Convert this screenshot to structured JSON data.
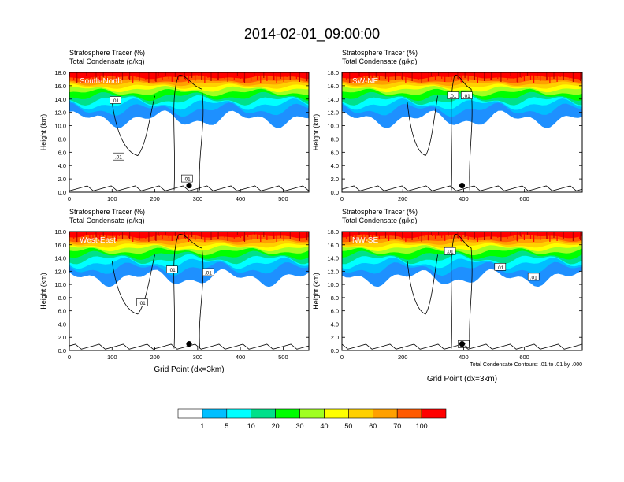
{
  "title": "2014-02-01_09:00:00",
  "panels": [
    {
      "label": "South-North",
      "header_line1": "Stratosphere Tracer   (%)",
      "header_line2": "Total Condensate   (g/kg)",
      "ylabel": "Height (km)",
      "xlabel": "",
      "xticks": [
        "0",
        "100",
        "200",
        "300",
        "400",
        "500"
      ],
      "xmax": 560,
      "marker_x": 280,
      "contour_labels": [
        {
          "text": ".01",
          "x": 108,
          "y": 13.8
        },
        {
          "text": ".01",
          "x": 115,
          "y": 5.3
        },
        {
          "text": ".01",
          "x": 275,
          "y": 2.0
        }
      ]
    },
    {
      "label": "SW-NE",
      "header_line1": "Stratosphere Tracer   (%)",
      "header_line2": "Total Condensate   (g/kg)",
      "ylabel": "Height (km)",
      "xlabel": "",
      "xticks": [
        "0",
        "200",
        "400",
        "600"
      ],
      "xmax": 790,
      "marker_x": 395,
      "contour_labels": [
        {
          "text": ".01",
          "x": 365,
          "y": 14.5
        },
        {
          "text": ".01",
          "x": 410,
          "y": 14.5
        }
      ]
    },
    {
      "label": "West-East",
      "header_line1": "Stratosphere Tracer   (%)",
      "header_line2": "Total Condensate   (g/kg)",
      "ylabel": "Height (km)",
      "xlabel": "Grid Point (dx=3km)",
      "xticks": [
        "0",
        "100",
        "200",
        "300",
        "400",
        "500"
      ],
      "xmax": 560,
      "marker_x": 280,
      "contour_labels": [
        {
          "text": ".01",
          "x": 240,
          "y": 12.2
        },
        {
          "text": ".01",
          "x": 170,
          "y": 7.2
        },
        {
          "text": ".01",
          "x": 325,
          "y": 11.8
        }
      ]
    },
    {
      "label": "NW-SE",
      "header_line1": "Stratosphere Tracer   (%)",
      "header_line2": "Total Condensate   (g/kg)",
      "ylabel": "Height (km)",
      "xlabel": "Grid Point (dx=3km)",
      "xticks": [
        "0",
        "200",
        "400",
        "600"
      ],
      "xmax": 790,
      "marker_x": 395,
      "contour_labels": [
        {
          "text": ".01",
          "x": 355,
          "y": 15.0
        },
        {
          "text": ".01",
          "x": 400,
          "y": 0.9
        },
        {
          "text": ".01",
          "x": 520,
          "y": 12.6
        },
        {
          "text": ".01",
          "x": 630,
          "y": 11.1
        }
      ]
    }
  ],
  "contour_note": "Total Condensate Contours: .01 to .01 by .000",
  "chart_data": {
    "type": "heatmap",
    "title": "2014-02-01_09:00:00",
    "variable": "Stratosphere Tracer (%)",
    "contour_variable": "Total Condensate (g/kg)",
    "ylabel": "Height (km)",
    "ylim": [
      0,
      18
    ],
    "yticks": [
      "0.0",
      "2.0",
      "4.0",
      "6.0",
      "8.0",
      "10.0",
      "12.0",
      "14.0",
      "16.0",
      "18.0"
    ],
    "xlabel": "Grid Point (dx=3km)",
    "color_levels": [
      "1",
      "5",
      "10",
      "20",
      "30",
      "40",
      "50",
      "60",
      "70",
      "100"
    ],
    "colors": [
      "#ffffff",
      "#1e90ff",
      "#00bfff",
      "#00ffff",
      "#00e08a",
      "#00ff00",
      "#a0ff20",
      "#ffff00",
      "#ffd000",
      "#ffa000",
      "#ff5a00",
      "#ff0000"
    ]
  }
}
